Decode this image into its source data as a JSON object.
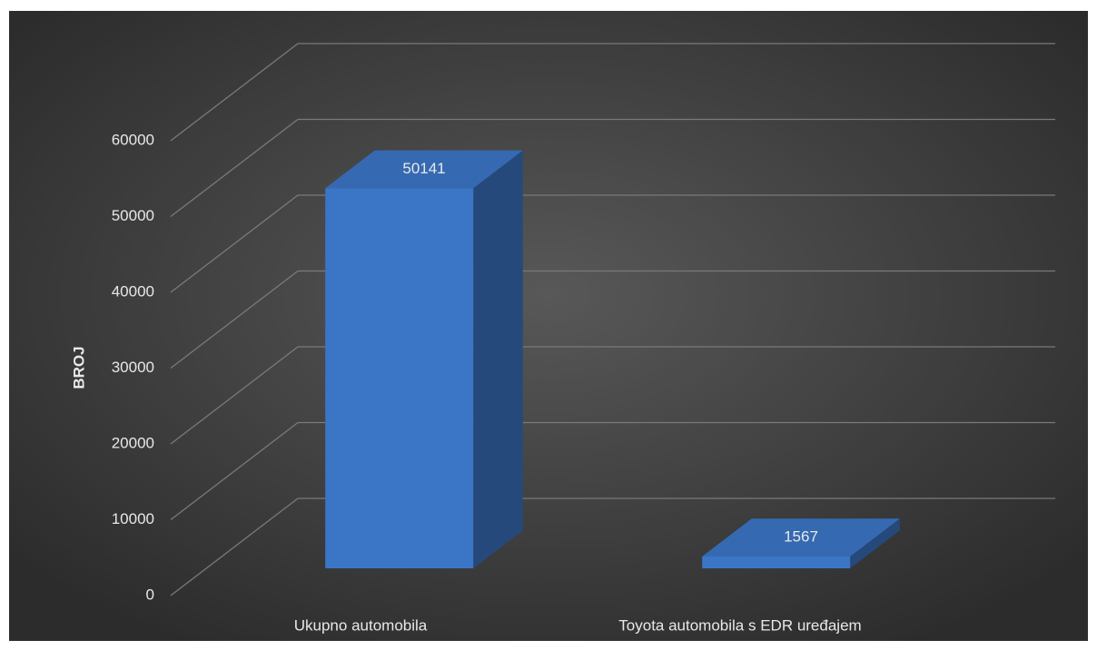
{
  "chart_data": {
    "type": "bar3d",
    "y_label": "BROJ",
    "categories": [
      "Ukupno automobila",
      "Toyota automobila s EDR uređajem"
    ],
    "values": [
      50141,
      1567
    ],
    "color": "#3b76c6",
    "ylim": [
      0,
      60000
    ],
    "yticks": [
      0,
      10000,
      20000,
      30000,
      40000,
      50000,
      60000
    ],
    "grid": true
  }
}
